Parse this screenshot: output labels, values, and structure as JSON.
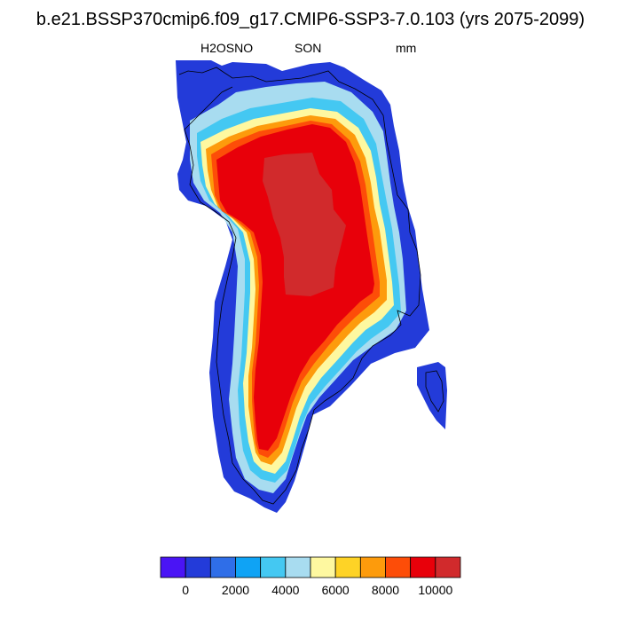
{
  "title": "b.e21.BSSP370cmip6.f09_g17.CMIP6-SSP3-7.0.103 (yrs 2075-2099)",
  "variable": "H2OSNO",
  "season": "SON",
  "units": "mm",
  "colorbar": {
    "colors": [
      "#4a14f5",
      "#233bd9",
      "#2f6ee8",
      "#0fa3f5",
      "#44c8f2",
      "#a8dcf0",
      "#fef8a0",
      "#fed326",
      "#fd9b0c",
      "#fd4d08",
      "#e8000a",
      "#d12a2c"
    ],
    "tick_labels": [
      "0",
      "2000",
      "4000",
      "6000",
      "8000",
      "10000"
    ],
    "tick_values": [
      0,
      2000,
      4000,
      6000,
      8000,
      10000
    ]
  },
  "legend_levels": {
    "edge_cyan": "#44c8f2",
    "edge_yellow": "#fef8a0",
    "edge_orange": "#fd9b0c",
    "core_red": "#e8000a",
    "center_darkred": "#d12a2c",
    "outer_blue": "#233bd9"
  }
}
